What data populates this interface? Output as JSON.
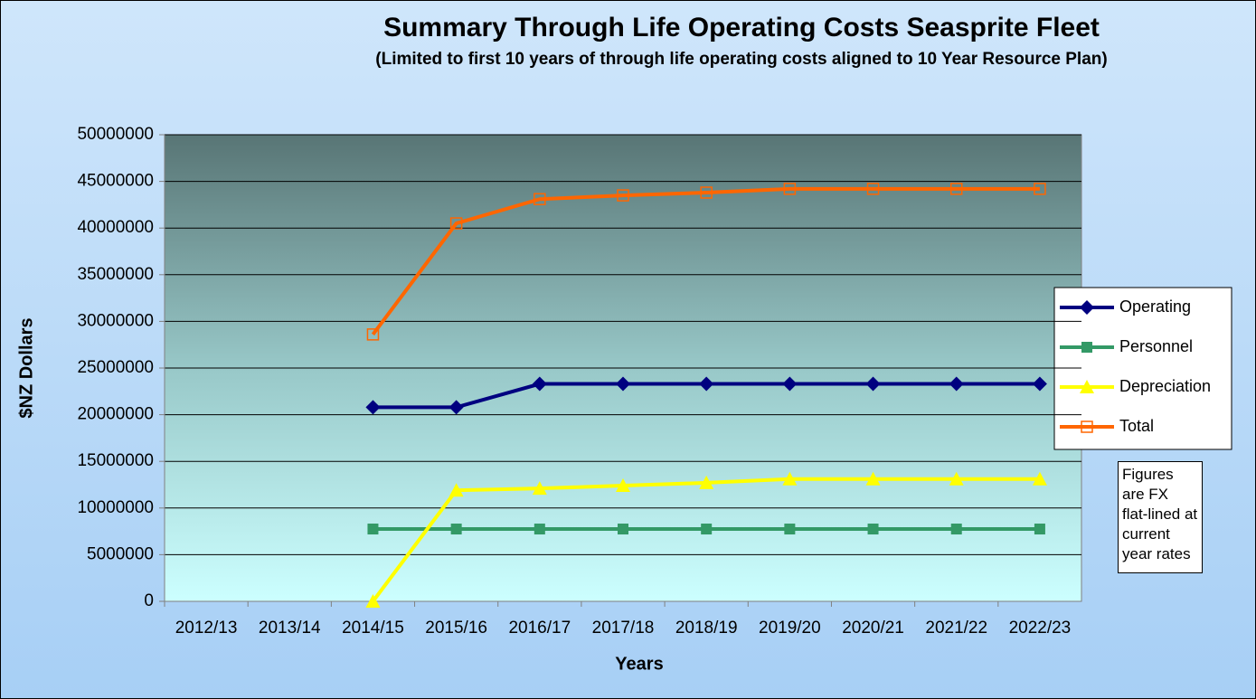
{
  "chart_data": {
    "type": "line",
    "title": "Summary Through Life Operating Costs Seasprite Fleet",
    "subtitle": "(Limited to first 10 years of through life operating costs aligned to 10 Year Resource Plan)",
    "x_label": "Years",
    "y_label": "$NZ Dollars",
    "annotation": "Figures are FX flat-lined at current year rates",
    "categories": [
      "2012/13",
      "2013/14",
      "2014/15",
      "2015/16",
      "2016/17",
      "2017/18",
      "2018/19",
      "2019/20",
      "2020/21",
      "2021/22",
      "2022/23"
    ],
    "series": [
      {
        "name": "Operating",
        "color": "#000080",
        "marker": "diamond",
        "values": [
          null,
          null,
          20800000,
          20800000,
          23300000,
          23300000,
          23300000,
          23300000,
          23300000,
          23300000,
          23300000
        ]
      },
      {
        "name": "Personnel",
        "color": "#339966",
        "marker": "square",
        "values": [
          null,
          null,
          7750000,
          7750000,
          7750000,
          7750000,
          7750000,
          7750000,
          7750000,
          7750000,
          7750000
        ]
      },
      {
        "name": "Depreciation",
        "color": "#ffff00",
        "marker": "triangle",
        "values": [
          null,
          null,
          0,
          11900000,
          12100000,
          12400000,
          12700000,
          13100000,
          13100000,
          13100000,
          13100000
        ]
      },
      {
        "name": "Total",
        "color": "#ff6600",
        "marker": "open-square",
        "values": [
          null,
          null,
          28600000,
          40500000,
          43100000,
          43500000,
          43800000,
          44200000,
          44200000,
          44200000,
          44200000
        ]
      }
    ],
    "ylim": [
      0,
      50000000
    ],
    "yticks": [
      0,
      5000000,
      10000000,
      15000000,
      20000000,
      25000000,
      30000000,
      35000000,
      40000000,
      45000000,
      50000000
    ],
    "grid": true,
    "legend": "right"
  }
}
